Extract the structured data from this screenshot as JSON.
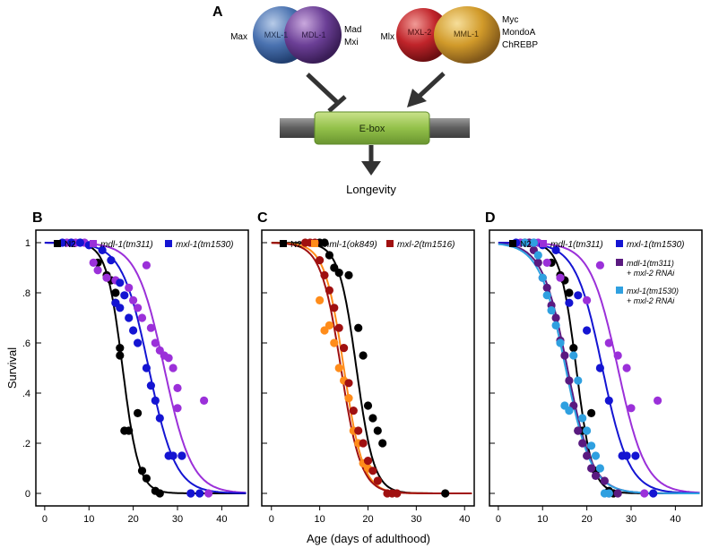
{
  "panel_a": {
    "label": "A",
    "balls": [
      {
        "text": "MXL-1",
        "color": "#4a72b0"
      },
      {
        "text": "MDL-1",
        "color": "#6b3f96"
      },
      {
        "text": "MXL-2",
        "color": "#c0242a"
      },
      {
        "text": "MML-1",
        "color": "#d19a2a"
      }
    ],
    "left_side_label": "Max",
    "left_right_labels": [
      "Mad",
      "Mxi"
    ],
    "right_side_label": "Mlx",
    "right_right_labels": [
      "Myc",
      "MondoA",
      "ChREBP"
    ],
    "ebox_label": "E-box",
    "longevity_label": "Longevity"
  },
  "axes": {
    "ylabel": "Survival",
    "xlabel": "Age (days of adulthood)",
    "yticks": [
      "0",
      ".2",
      ".4",
      ".6",
      ".8",
      "1"
    ],
    "xticks": [
      "0",
      "10",
      "20",
      "30",
      "40"
    ]
  },
  "chart_data": [
    {
      "label": "B",
      "type": "scatter",
      "xlim": [
        -2,
        46
      ],
      "ylim": [
        -0.05,
        1.05
      ],
      "series": [
        {
          "name": "N2",
          "color": "#000000",
          "half": 17.6,
          "slope": 0.55,
          "points": [
            [
              12,
              0.92
            ],
            [
              14,
              0.87
            ],
            [
              15,
              0.85
            ],
            [
              16,
              0.8
            ],
            [
              16,
              0.76
            ],
            [
              17,
              0.58
            ],
            [
              17,
              0.55
            ],
            [
              18,
              0.25
            ],
            [
              19,
              0.25
            ],
            [
              21,
              0.32
            ],
            [
              22,
              0.09
            ],
            [
              23,
              0.06
            ],
            [
              25,
              0.01
            ],
            [
              26,
              0.0
            ]
          ]
        },
        {
          "name": "mdl-1(tm311)",
          "color": "#9b30d9",
          "half": 27.0,
          "slope": 0.32,
          "points": [
            [
              5,
              1.0
            ],
            [
              6,
              1.0
            ],
            [
              7,
              1.0
            ],
            [
              8,
              1.0
            ],
            [
              9,
              1.0
            ],
            [
              10,
              0.99
            ],
            [
              11,
              0.92
            ],
            [
              12,
              0.89
            ],
            [
              14,
              0.86
            ],
            [
              16,
              0.85
            ],
            [
              19,
              0.82
            ],
            [
              20,
              0.77
            ],
            [
              21,
              0.74
            ],
            [
              22,
              0.7
            ],
            [
              23,
              0.91
            ],
            [
              24,
              0.66
            ],
            [
              25,
              0.6
            ],
            [
              26,
              0.57
            ],
            [
              27,
              0.55
            ],
            [
              28,
              0.54
            ],
            [
              29,
              0.5
            ],
            [
              30,
              0.42
            ],
            [
              30,
              0.34
            ],
            [
              31,
              0.15
            ],
            [
              33,
              0.0
            ],
            [
              36,
              0.37
            ],
            [
              37,
              0.0
            ]
          ]
        },
        {
          "name": "mxl-1(tm1530)",
          "color": "#1414d2",
          "half": 23.5,
          "slope": 0.33,
          "points": [
            [
              4,
              1.0
            ],
            [
              6,
              1.0
            ],
            [
              8,
              1.0
            ],
            [
              10,
              0.99
            ],
            [
              13,
              0.97
            ],
            [
              15,
              0.93
            ],
            [
              16,
              0.76
            ],
            [
              17,
              0.74
            ],
            [
              17,
              0.84
            ],
            [
              18,
              0.79
            ],
            [
              19,
              0.7
            ],
            [
              20,
              0.65
            ],
            [
              21,
              0.6
            ],
            [
              23,
              0.5
            ],
            [
              24,
              0.43
            ],
            [
              25,
              0.37
            ],
            [
              26,
              0.3
            ],
            [
              28,
              0.15
            ],
            [
              29,
              0.15
            ],
            [
              31,
              0.15
            ],
            [
              33,
              0.0
            ],
            [
              35,
              0.0
            ]
          ]
        }
      ]
    },
    {
      "label": "C",
      "type": "scatter",
      "xlim": [
        -2,
        42
      ],
      "ylim": [
        -0.05,
        1.05
      ],
      "series": [
        {
          "name": "N2",
          "color": "#000000",
          "half": 17.6,
          "slope": 0.55,
          "points": [
            [
              10,
              1.0
            ],
            [
              11,
              1.0
            ],
            [
              12,
              0.95
            ],
            [
              13,
              0.9
            ],
            [
              14,
              0.88
            ],
            [
              16,
              0.87
            ],
            [
              18,
              0.66
            ],
            [
              19,
              0.55
            ],
            [
              20,
              0.35
            ],
            [
              21,
              0.3
            ],
            [
              22,
              0.25
            ],
            [
              23,
              0.2
            ],
            [
              36,
              0.0
            ]
          ]
        },
        {
          "name": "mml-1(ok849)",
          "color": "#ff8c1a",
          "half": 15.0,
          "slope": 0.5,
          "points": [
            [
              10,
              0.77
            ],
            [
              11,
              0.65
            ],
            [
              12,
              0.67
            ],
            [
              13,
              0.6
            ],
            [
              14,
              0.5
            ],
            [
              15,
              0.45
            ],
            [
              16,
              0.38
            ],
            [
              17,
              0.25
            ],
            [
              18,
              0.2
            ],
            [
              19,
              0.12
            ],
            [
              20,
              0.1
            ],
            [
              22,
              0.05
            ]
          ]
        },
        {
          "name": "mxl-2(tm1516)",
          "color": "#a01010",
          "half": 14.4,
          "slope": 0.48,
          "points": [
            [
              7,
              1.0
            ],
            [
              8,
              1.0
            ],
            [
              9,
              1.0
            ],
            [
              10,
              0.93
            ],
            [
              11,
              0.87
            ],
            [
              12,
              0.81
            ],
            [
              13,
              0.74
            ],
            [
              14,
              0.66
            ],
            [
              15,
              0.58
            ],
            [
              16,
              0.44
            ],
            [
              17,
              0.33
            ],
            [
              18,
              0.25
            ],
            [
              19,
              0.2
            ],
            [
              20,
              0.13
            ],
            [
              21,
              0.09
            ],
            [
              22,
              0.05
            ],
            [
              24,
              0.0
            ],
            [
              25,
              0.0
            ],
            [
              26,
              0.0
            ]
          ]
        }
      ]
    },
    {
      "label": "D",
      "type": "scatter",
      "xlim": [
        -2,
        46
      ],
      "ylim": [
        -0.05,
        1.05
      ],
      "series": [
        {
          "name": "N2",
          "color": "#000000",
          "half": 17.6,
          "slope": 0.55,
          "points": [
            [
              12,
              0.92
            ],
            [
              14,
              0.87
            ],
            [
              15,
              0.85
            ],
            [
              16,
              0.8
            ],
            [
              17,
              0.58
            ],
            [
              18,
              0.25
            ],
            [
              19,
              0.25
            ],
            [
              21,
              0.32
            ],
            [
              22,
              0.09
            ],
            [
              25,
              0.01
            ],
            [
              26,
              0.0
            ]
          ]
        },
        {
          "name": "mdl-1(tm311)",
          "color": "#9b30d9",
          "half": 27.0,
          "slope": 0.32,
          "points": [
            [
              5,
              1.0
            ],
            [
              7,
              1.0
            ],
            [
              9,
              1.0
            ],
            [
              11,
              0.92
            ],
            [
              14,
              0.86
            ],
            [
              20,
              0.77
            ],
            [
              23,
              0.91
            ],
            [
              25,
              0.6
            ],
            [
              27,
              0.55
            ],
            [
              29,
              0.5
            ],
            [
              30,
              0.34
            ],
            [
              33,
              0.0
            ],
            [
              36,
              0.37
            ]
          ]
        },
        {
          "name": "mxl-1(tm1530)",
          "color": "#1414d2",
          "half": 23.5,
          "slope": 0.33,
          "points": [
            [
              4,
              1.0
            ],
            [
              6,
              1.0
            ],
            [
              8,
              1.0
            ],
            [
              10,
              0.99
            ],
            [
              13,
              0.97
            ],
            [
              16,
              0.76
            ],
            [
              18,
              0.79
            ],
            [
              20,
              0.65
            ],
            [
              23,
              0.5
            ],
            [
              25,
              0.37
            ],
            [
              28,
              0.15
            ],
            [
              29,
              0.15
            ],
            [
              31,
              0.15
            ],
            [
              35,
              0.0
            ]
          ]
        },
        {
          "name": "mdl-1(tm311) + mxl-2 RNAi",
          "color": "#5a1a80",
          "half": 15.6,
          "slope": 0.35,
          "points": [
            [
              6,
              1.0
            ],
            [
              7,
              1.0
            ],
            [
              8,
              0.97
            ],
            [
              9,
              0.92
            ],
            [
              10,
              0.86
            ],
            [
              11,
              0.82
            ],
            [
              12,
              0.75
            ],
            [
              13,
              0.7
            ],
            [
              14,
              0.61
            ],
            [
              15,
              0.55
            ],
            [
              16,
              0.45
            ],
            [
              17,
              0.35
            ],
            [
              18,
              0.25
            ],
            [
              19,
              0.2
            ],
            [
              20,
              0.15
            ],
            [
              21,
              0.1
            ],
            [
              22,
              0.07
            ],
            [
              24,
              0.05
            ],
            [
              25,
              0.0
            ],
            [
              27,
              0.0
            ]
          ]
        },
        {
          "name": "mxl-1(tm1530) + mxl-2 RNAi",
          "color": "#2fa0e0",
          "half": 15.2,
          "slope": 0.34,
          "points": [
            [
              6,
              1.0
            ],
            [
              8,
              1.0
            ],
            [
              9,
              0.95
            ],
            [
              10,
              0.86
            ],
            [
              11,
              0.79
            ],
            [
              12,
              0.73
            ],
            [
              13,
              0.67
            ],
            [
              14,
              0.6
            ],
            [
              15,
              0.35
            ],
            [
              16,
              0.33
            ],
            [
              17,
              0.55
            ],
            [
              18,
              0.45
            ],
            [
              19,
              0.3
            ],
            [
              20,
              0.25
            ],
            [
              21,
              0.19
            ],
            [
              22,
              0.15
            ],
            [
              23,
              0.1
            ],
            [
              24,
              0.0
            ],
            [
              25,
              0.0
            ]
          ]
        }
      ]
    }
  ]
}
